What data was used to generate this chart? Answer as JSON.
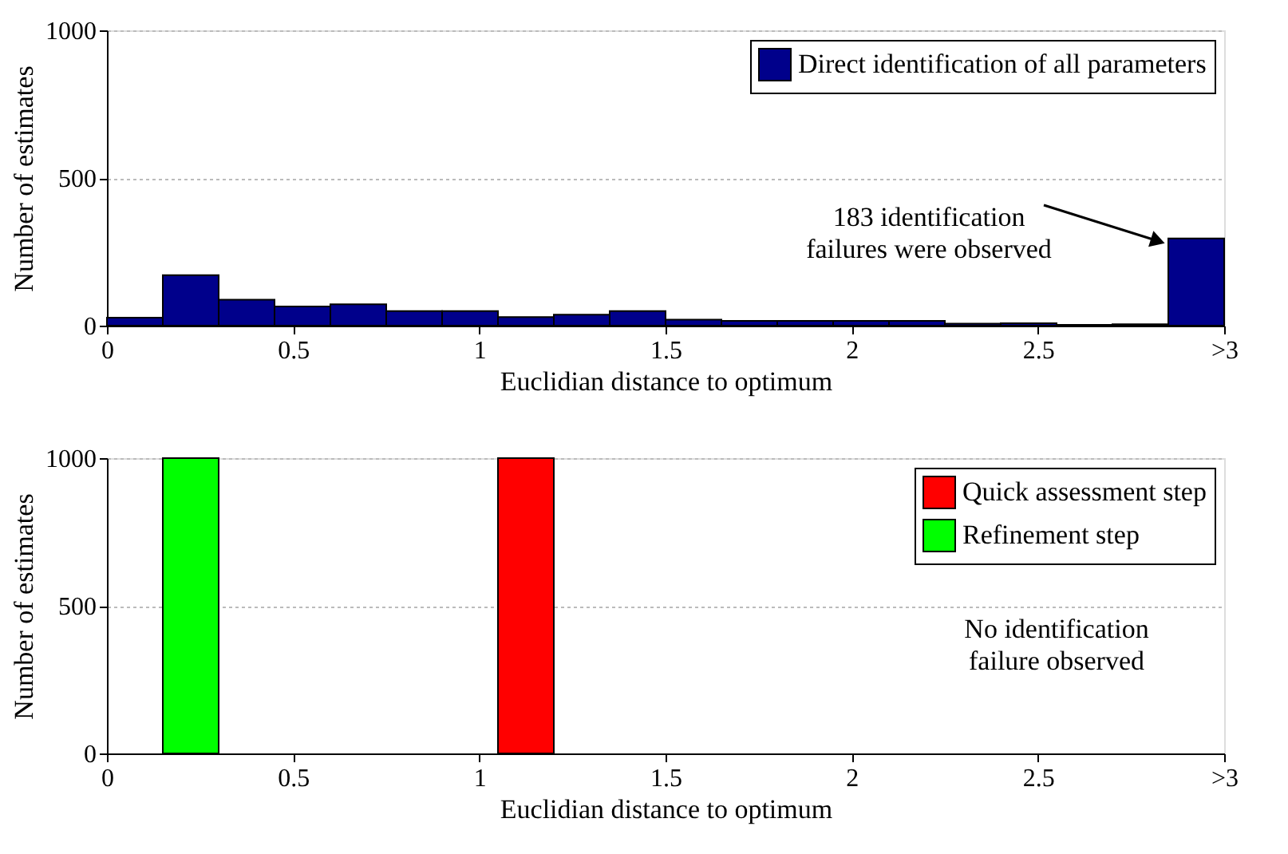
{
  "chart_data": [
    {
      "type": "histogram",
      "xlabel": "Euclidian distance to optimum",
      "ylabel": "Number of estimates",
      "bins": [
        0,
        0.15,
        0.3,
        0.45,
        0.6,
        0.75,
        0.9,
        1.05,
        1.2,
        1.35,
        1.5,
        1.65,
        1.8,
        1.95,
        2.1,
        2.25,
        2.4,
        2.55,
        2.7,
        2.85,
        3
      ],
      "series": [
        {
          "name": "Direct identification of all parameters",
          "color": "#00008b",
          "values": [
            27,
            171,
            88,
            65,
            72,
            49,
            49,
            29,
            37,
            49,
            20,
            16,
            16,
            16,
            16,
            7,
            8,
            3,
            5,
            295
          ]
        }
      ],
      "xlim": [
        0,
        3
      ],
      "xticks": [
        0,
        0.5,
        1,
        1.5,
        2,
        2.5,
        {
          "value": 3,
          "label": ">3"
        }
      ],
      "ylim": [
        0,
        1000
      ],
      "yticks": [
        0,
        500,
        1000
      ],
      "grid": "y",
      "legend": "top right",
      "annotations": [
        {
          "text": "183 identification\nfailures were observed",
          "x": 2.85,
          "y": 300
        }
      ]
    },
    {
      "type": "histogram",
      "xlabel": "Euclidian distance to optimum",
      "ylabel": "Number of estimates",
      "bins": [
        0,
        0.15,
        0.3,
        0.45,
        0.6,
        0.75,
        0.9,
        1.05,
        1.2,
        1.35,
        1.5,
        1.65,
        1.8,
        1.95,
        2.1,
        2.25,
        2.4,
        2.55,
        2.7,
        2.85,
        3
      ],
      "series": [
        {
          "name": "Quick assessment step",
          "color": "#ff0000",
          "values": [
            0,
            0,
            0,
            0,
            0,
            0,
            0,
            1000,
            0,
            0,
            0,
            0,
            0,
            0,
            0,
            0,
            0,
            0,
            0,
            0
          ]
        },
        {
          "name": "Refinement step",
          "color": "#00ff00",
          "values": [
            0,
            1000,
            0,
            0,
            0,
            0,
            0,
            0,
            0,
            0,
            0,
            0,
            0,
            0,
            0,
            0,
            0,
            0,
            0,
            0
          ]
        }
      ],
      "xlim": [
        0,
        3
      ],
      "xticks": [
        0,
        0.5,
        1,
        1.5,
        2,
        2.5,
        {
          "value": 3,
          "label": ">3"
        }
      ],
      "ylim": [
        0,
        1000
      ],
      "yticks": [
        0,
        500,
        1000
      ],
      "grid": "y",
      "legend": "top right",
      "annotations": [
        "No identification\nfailure observed"
      ]
    }
  ]
}
